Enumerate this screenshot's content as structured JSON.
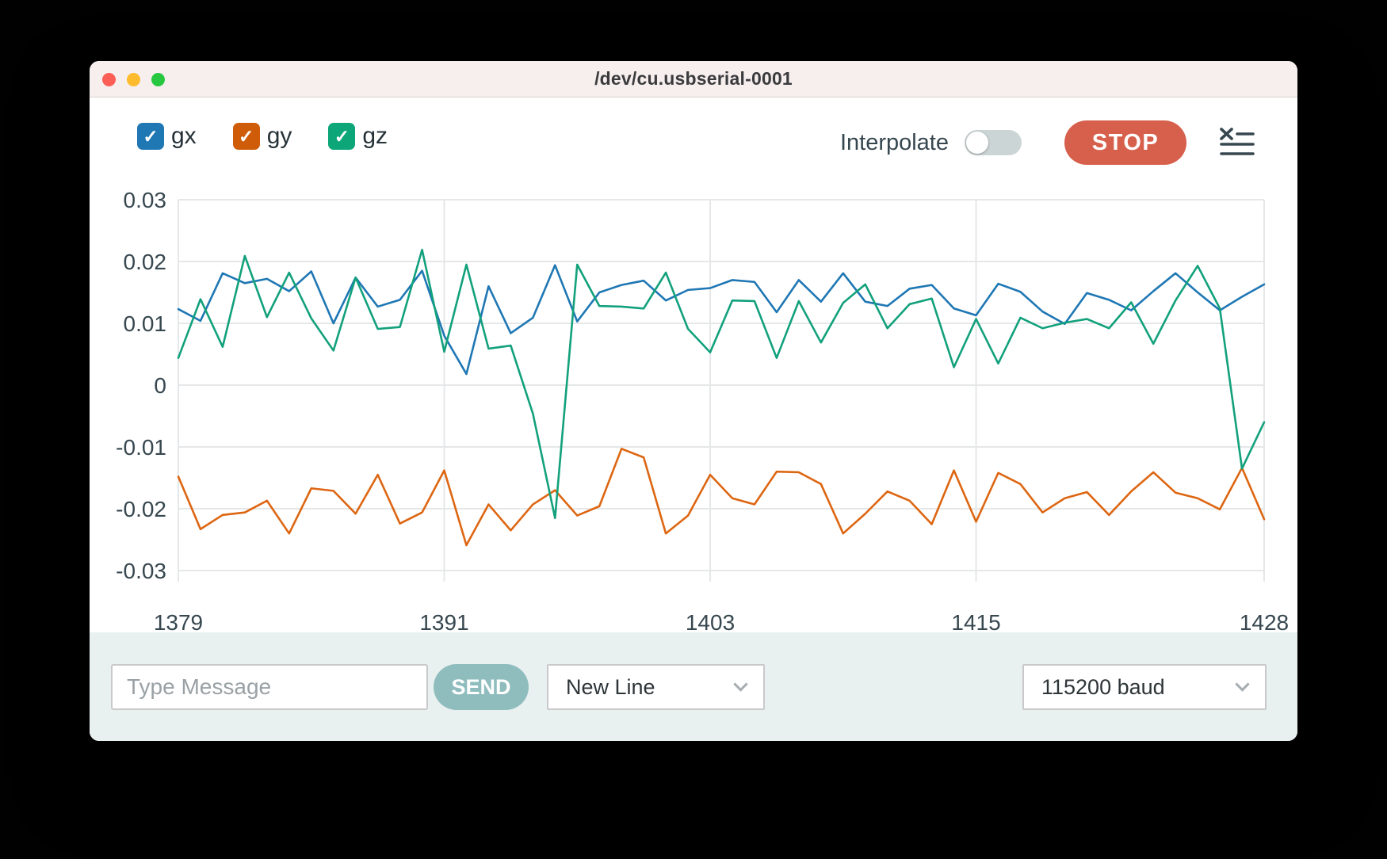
{
  "window": {
    "title": "/dev/cu.usbserial-0001"
  },
  "toolbar": {
    "legend": [
      {
        "label": "gx",
        "color": "#1f77b4",
        "checked": true
      },
      {
        "label": "gy",
        "color": "#cf5c08",
        "checked": true
      },
      {
        "label": "gz",
        "color": "#0ca678",
        "checked": true
      }
    ],
    "interpolate_label": "Interpolate",
    "interpolate_on": false,
    "stop_label": "STOP",
    "check_glyph": "✓"
  },
  "chart_data": {
    "type": "line",
    "title": "",
    "xlabel": "",
    "ylabel": "",
    "grid": true,
    "legend_position": "top-left checkboxes",
    "xlim": [
      1379,
      1428
    ],
    "ylim": [
      -0.03,
      0.03
    ],
    "x_ticks": [
      1379,
      1391,
      1403,
      1415,
      1428
    ],
    "y_ticks": [
      0.03,
      0.02,
      0.01,
      0,
      -0.01,
      -0.02,
      -0.03
    ],
    "y_tick_labels": [
      "0.03",
      "0.02",
      "0.01",
      "0",
      "-0.01",
      "-0.02",
      "-0.03"
    ],
    "x": [
      1379,
      1380,
      1381,
      1382,
      1383,
      1384,
      1385,
      1386,
      1387,
      1388,
      1389,
      1390,
      1391,
      1392,
      1393,
      1394,
      1395,
      1396,
      1397,
      1398,
      1399,
      1400,
      1401,
      1402,
      1403,
      1404,
      1405,
      1406,
      1407,
      1408,
      1409,
      1410,
      1411,
      1412,
      1413,
      1414,
      1415,
      1416,
      1417,
      1418,
      1419,
      1420,
      1421,
      1422,
      1423,
      1424,
      1425,
      1426,
      1427,
      1428
    ],
    "series": [
      {
        "name": "gx",
        "color": "#1f77b4",
        "values": [
          0.0123,
          0.0104,
          0.0181,
          0.0165,
          0.0172,
          0.0152,
          0.0184,
          0.01,
          0.0174,
          0.0127,
          0.0138,
          0.0185,
          0.008,
          0.0018,
          0.016,
          0.0084,
          0.0109,
          0.0194,
          0.0103,
          0.015,
          0.0162,
          0.0169,
          0.0137,
          0.0154,
          0.0157,
          0.017,
          0.0167,
          0.0118,
          0.017,
          0.0135,
          0.0181,
          0.0135,
          0.0128,
          0.0156,
          0.0162,
          0.0124,
          0.0113,
          0.0164,
          0.0151,
          0.0119,
          0.0099,
          0.0149,
          0.0138,
          0.0121,
          0.0152,
          0.0181,
          0.015,
          0.0121,
          0.0143,
          0.0163
        ]
      },
      {
        "name": "gy",
        "color": "#dd6612",
        "values": [
          -0.0148,
          -0.0233,
          -0.021,
          -0.0206,
          -0.0187,
          -0.024,
          -0.0167,
          -0.0171,
          -0.0208,
          -0.0145,
          -0.0224,
          -0.0206,
          -0.0138,
          -0.0259,
          -0.0193,
          -0.0235,
          -0.0193,
          -0.017,
          -0.0211,
          -0.0196,
          -0.0103,
          -0.0117,
          -0.024,
          -0.0211,
          -0.0145,
          -0.0183,
          -0.0193,
          -0.014,
          -0.0141,
          -0.016,
          -0.024,
          -0.0208,
          -0.0172,
          -0.0187,
          -0.0225,
          -0.0138,
          -0.0221,
          -0.0142,
          -0.016,
          -0.0206,
          -0.0183,
          -0.0173,
          -0.021,
          -0.0172,
          -0.0141,
          -0.0174,
          -0.0183,
          -0.0201,
          -0.0134,
          -0.0217
        ]
      },
      {
        "name": "gz",
        "color": "#12a17c",
        "values": [
          0.0044,
          0.0139,
          0.0062,
          0.0209,
          0.011,
          0.0182,
          0.0108,
          0.0056,
          0.0174,
          0.0091,
          0.0094,
          0.0219,
          0.0054,
          0.0195,
          0.0059,
          0.0064,
          -0.0046,
          -0.0215,
          0.0195,
          0.0128,
          0.0127,
          0.0124,
          0.0182,
          0.0091,
          0.0053,
          0.0137,
          0.0136,
          0.0044,
          0.0136,
          0.0069,
          0.0133,
          0.0163,
          0.0092,
          0.0131,
          0.014,
          0.0029,
          0.0107,
          0.0035,
          0.0109,
          0.0092,
          0.0101,
          0.0107,
          0.0092,
          0.0134,
          0.0067,
          0.0137,
          0.0193,
          0.0124,
          -0.0135,
          -0.006
        ]
      }
    ]
  },
  "message_bar": {
    "input_placeholder": "Type Message",
    "input_value": "",
    "send_label": "SEND",
    "line_ending_selected": "New Line",
    "baud_selected": "115200 baud"
  },
  "colors": {
    "stop_button": "#d7604d",
    "send_button": "#8fbdbe",
    "titlebar_bg": "#f6efee",
    "message_bar_bg": "#e9f0f0",
    "toggle_off_bg": "#ccd5d6",
    "grid_line": "#e5e7e8",
    "tick_text": "#37474f"
  }
}
